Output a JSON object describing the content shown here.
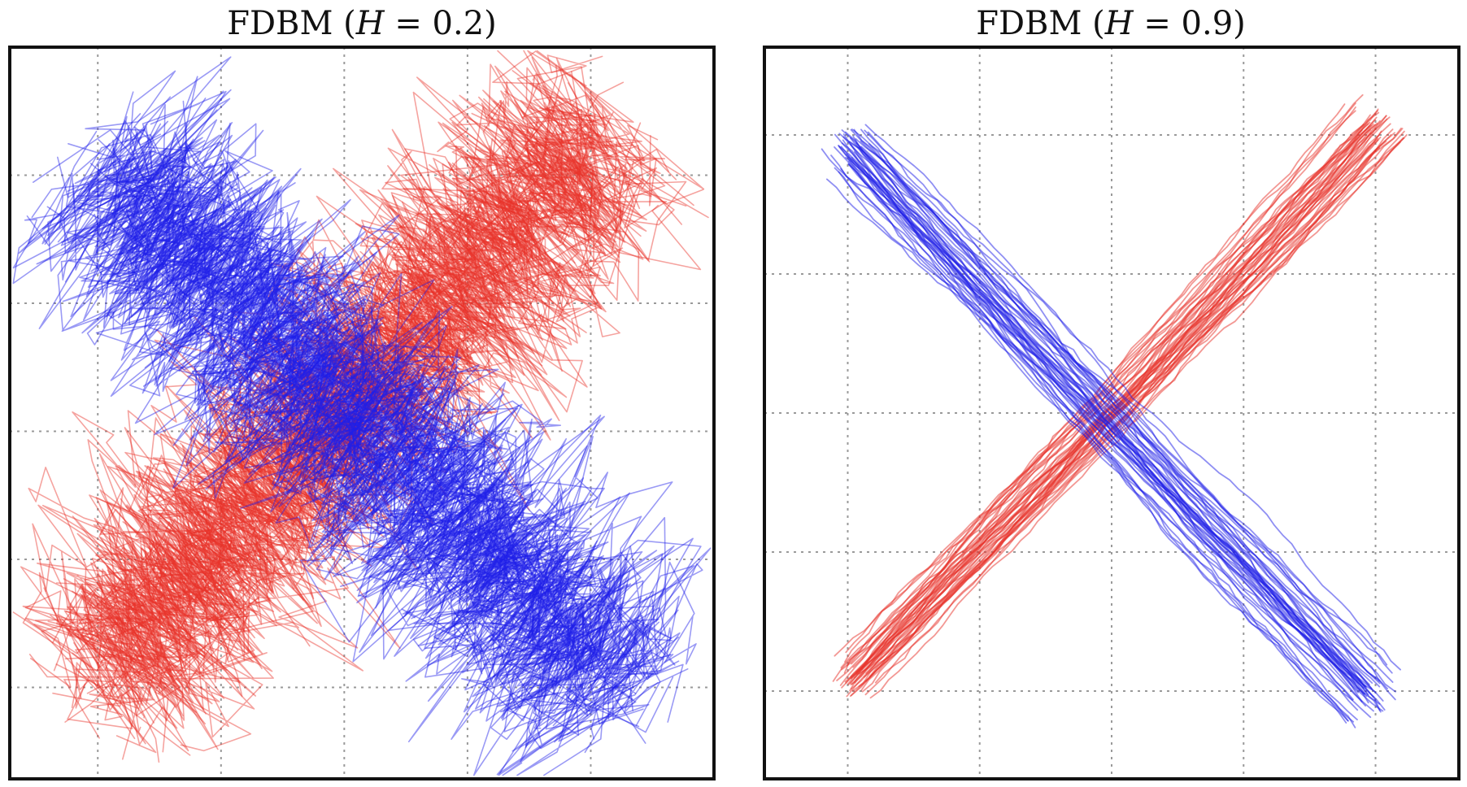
{
  "chart_data": [
    {
      "type": "line",
      "title_prefix": "FDBM (",
      "title_var": "H",
      "title_suffix": " = 0.2)",
      "hurst": 0.2,
      "xlim": [
        -1,
        1
      ],
      "ylim": [
        -1,
        1
      ],
      "grid": true,
      "xticks": [
        -0.75,
        -0.4,
        -0.05,
        0.3,
        0.65
      ],
      "yticks": [
        0.65,
        0.3,
        -0.05,
        -0.4,
        -0.75
      ],
      "tick_labels_shown": false,
      "series": [
        {
          "name": "red",
          "color": "#e8322a",
          "count": 60,
          "start": [
            -0.8,
            -0.78
          ],
          "end": [
            0.75,
            0.82
          ],
          "spread": 0.16,
          "roughness": "high"
        },
        {
          "name": "blue",
          "color": "#2020e8",
          "count": 60,
          "start": [
            -0.78,
            0.72
          ],
          "end": [
            0.78,
            -0.8
          ],
          "spread": 0.16,
          "roughness": "high"
        }
      ]
    },
    {
      "type": "line",
      "title_prefix": "FDBM (",
      "title_var": "H",
      "title_suffix": " = 0.9)",
      "hurst": 0.9,
      "xlim": [
        -1,
        1
      ],
      "ylim": [
        -1,
        1
      ],
      "grid": true,
      "xticks": [
        -0.76,
        -0.38,
        0.0,
        0.38,
        0.76
      ],
      "yticks": [
        0.76,
        0.38,
        0.0,
        -0.38,
        -0.76
      ],
      "tick_labels_shown": false,
      "series": [
        {
          "name": "red",
          "color": "#e8322a",
          "count": 45,
          "start": [
            -0.78,
            -0.76
          ],
          "end": [
            0.8,
            0.82
          ],
          "spread": 0.06,
          "roughness": "low"
        },
        {
          "name": "blue",
          "color": "#2020e8",
          "count": 45,
          "start": [
            -0.8,
            0.76
          ],
          "end": [
            0.78,
            -0.82
          ],
          "spread": 0.06,
          "roughness": "low"
        }
      ]
    }
  ]
}
